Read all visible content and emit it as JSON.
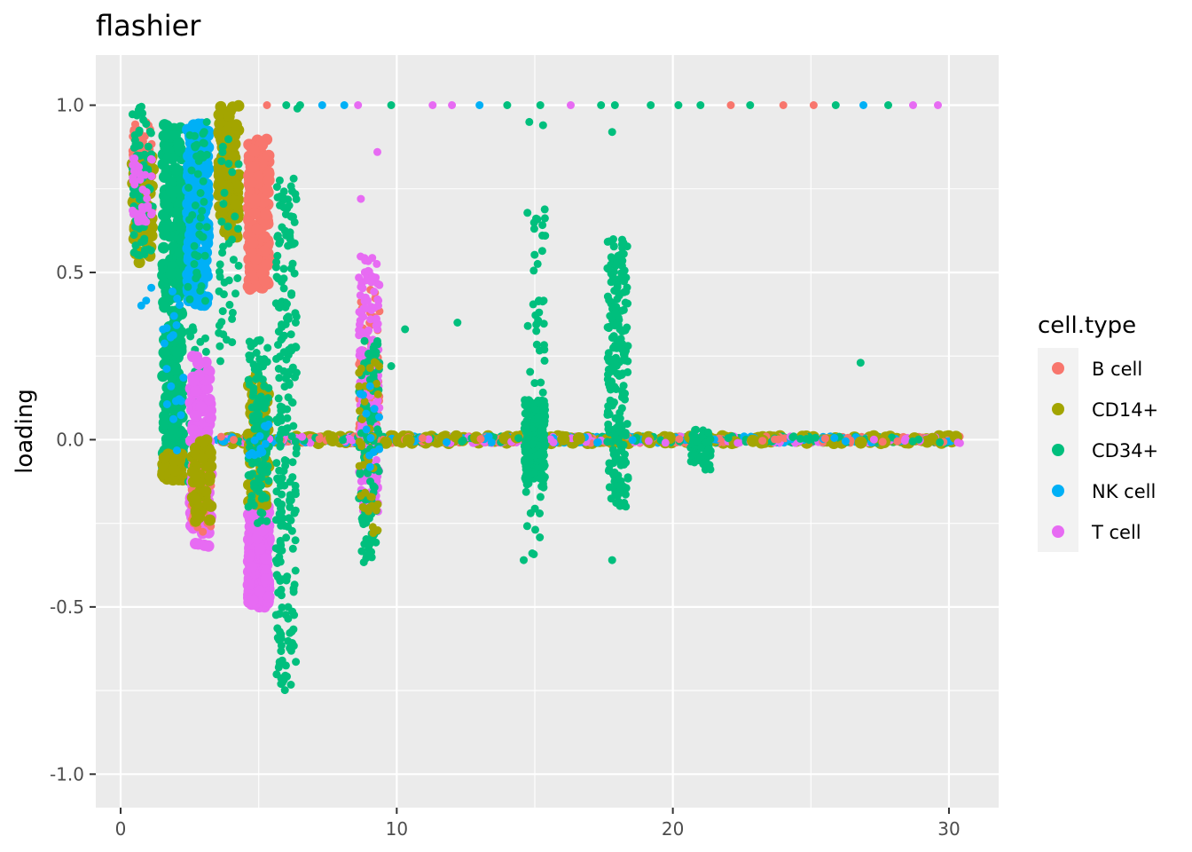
{
  "chart_data": {
    "type": "scatter",
    "title": "flashier",
    "xlabel": "",
    "ylabel": "loading",
    "xlim": [
      -0.9,
      31.8
    ],
    "ylim": [
      -1.1,
      1.15
    ],
    "x_ticks": [
      0,
      10,
      20,
      30
    ],
    "y_ticks": [
      -1.0,
      -0.5,
      0.0,
      0.5,
      1.0
    ],
    "x_tick_labels": [
      "0",
      "10",
      "20",
      "30"
    ],
    "y_tick_labels": [
      "-1.0",
      "-0.5",
      "0.0",
      "0.5",
      "1.0"
    ],
    "grid": true,
    "legend": {
      "title": "cell.type",
      "position": "right",
      "entries": [
        "B cell",
        "CD14+",
        "CD34+",
        "NK cell",
        "T cell"
      ]
    },
    "series": [
      {
        "name": "B cell",
        "color": "#F8766D"
      },
      {
        "name": "CD14+",
        "color": "#A3A500"
      },
      {
        "name": "CD34+",
        "color": "#00BF7D"
      },
      {
        "name": "NK cell",
        "color": "#00B0F6"
      },
      {
        "name": "T cell",
        "color": "#E76BF3"
      }
    ],
    "clusters": [
      {
        "x": 0.8,
        "series": "B cell",
        "ymin": 0.6,
        "ymax": 0.95,
        "n": 80,
        "size": "small"
      },
      {
        "x": 0.8,
        "series": "CD14+",
        "ymin": 0.52,
        "ymax": 0.85,
        "n": 60,
        "size": "large"
      },
      {
        "x": 0.8,
        "series": "CD34+",
        "ymin": 0.55,
        "ymax": 1.0,
        "n": 80,
        "size": "small"
      },
      {
        "x": 0.8,
        "series": "T cell",
        "ymin": 0.65,
        "ymax": 0.85,
        "n": 40,
        "size": "small"
      },
      {
        "x": 0.8,
        "series": "NK cell",
        "ymin": 0.4,
        "ymax": 0.46,
        "n": 3,
        "size": "small"
      },
      {
        "x": 1.9,
        "series": "CD34+",
        "ymin": -0.1,
        "ymax": 0.95,
        "n": 260,
        "size": "large"
      },
      {
        "x": 1.9,
        "series": "CD14+",
        "ymin": -0.12,
        "ymax": -0.04,
        "n": 40,
        "size": "large"
      },
      {
        "x": 1.9,
        "series": "NK cell",
        "ymin": -0.05,
        "ymax": 0.45,
        "n": 20,
        "size": "small"
      },
      {
        "x": 2.8,
        "series": "NK cell",
        "ymin": 0.4,
        "ymax": 0.95,
        "n": 280,
        "size": "large"
      },
      {
        "x": 2.8,
        "series": "CD34+",
        "ymin": -0.3,
        "ymax": 0.95,
        "n": 90,
        "size": "small"
      },
      {
        "x": 2.9,
        "series": "T cell",
        "ymin": -0.32,
        "ymax": 0.25,
        "n": 140,
        "size": "large"
      },
      {
        "x": 2.9,
        "series": "B cell",
        "ymin": -0.28,
        "ymax": -0.05,
        "n": 50,
        "size": "small"
      },
      {
        "x": 2.9,
        "series": "CD14+",
        "ymin": -0.25,
        "ymax": 0.0,
        "n": 50,
        "size": "large"
      },
      {
        "x": 3.9,
        "series": "CD14+",
        "ymin": 0.6,
        "ymax": 1.0,
        "n": 140,
        "size": "large"
      },
      {
        "x": 3.9,
        "series": "CD34+",
        "ymin": 0.2,
        "ymax": 0.9,
        "n": 40,
        "size": "small"
      },
      {
        "x": 5.0,
        "series": "B cell",
        "ymin": 0.45,
        "ymax": 0.9,
        "n": 220,
        "size": "large"
      },
      {
        "x": 5.0,
        "series": "T cell",
        "ymin": -0.5,
        "ymax": -0.2,
        "n": 260,
        "size": "large"
      },
      {
        "x": 5.0,
        "series": "CD14+",
        "ymin": -0.2,
        "ymax": 0.2,
        "n": 60,
        "size": "large"
      },
      {
        "x": 5.0,
        "series": "CD34+",
        "ymin": -0.25,
        "ymax": 0.3,
        "n": 120,
        "size": "small"
      },
      {
        "x": 5.0,
        "series": "NK cell",
        "ymin": -0.05,
        "ymax": 0.05,
        "n": 12,
        "size": "small"
      },
      {
        "x": 6.0,
        "series": "CD34+",
        "ymin": -0.75,
        "ymax": 0.8,
        "n": 240,
        "size": "small"
      },
      {
        "x": 9.0,
        "series": "B cell",
        "ymin": 0.0,
        "ymax": 0.45,
        "n": 80,
        "size": "small"
      },
      {
        "x": 9.0,
        "series": "T cell",
        "ymin": -0.22,
        "ymax": 0.55,
        "n": 200,
        "size": "small"
      },
      {
        "x": 9.0,
        "series": "CD34+",
        "ymin": -0.38,
        "ymax": 0.3,
        "n": 110,
        "size": "small"
      },
      {
        "x": 9.0,
        "series": "CD14+",
        "ymin": -0.28,
        "ymax": 0.25,
        "n": 40,
        "size": "small"
      },
      {
        "x": 9.0,
        "series": "NK cell",
        "ymin": -0.1,
        "ymax": 0.2,
        "n": 12,
        "size": "small"
      },
      {
        "x": 15.0,
        "series": "CD34+",
        "ymin": -0.12,
        "ymax": 0.12,
        "n": 260,
        "size": "small"
      },
      {
        "x": 15.0,
        "series": "CD34+",
        "ymin": -0.35,
        "ymax": 0.7,
        "n": 60,
        "size": "small"
      },
      {
        "x": 18.0,
        "series": "CD34+",
        "ymin": -0.2,
        "ymax": 0.6,
        "n": 220,
        "size": "small"
      },
      {
        "x": 21.0,
        "series": "CD34+",
        "ymin": -0.1,
        "ymax": 0.03,
        "n": 60,
        "size": "small"
      }
    ],
    "baseline_band": {
      "xmin": 3.5,
      "xmax": 30.4,
      "y": 0.0,
      "series_order": [
        "CD14+",
        "B cell",
        "CD34+",
        "T cell",
        "NK cell"
      ],
      "n": 1100
    },
    "outliers": [
      {
        "x": 5.3,
        "y": 1.0,
        "series": "B cell"
      },
      {
        "x": 6.0,
        "y": 1.0,
        "series": "CD34+"
      },
      {
        "x": 6.5,
        "y": 1.0,
        "series": "CD34+"
      },
      {
        "x": 6.4,
        "y": 0.99,
        "series": "CD34+"
      },
      {
        "x": 7.3,
        "y": 1.0,
        "series": "NK cell"
      },
      {
        "x": 8.1,
        "y": 1.0,
        "series": "NK cell"
      },
      {
        "x": 8.6,
        "y": 1.0,
        "series": "T cell"
      },
      {
        "x": 9.8,
        "y": 1.0,
        "series": "CD34+"
      },
      {
        "x": 11.3,
        "y": 1.0,
        "series": "T cell"
      },
      {
        "x": 12.0,
        "y": 1.0,
        "series": "T cell"
      },
      {
        "x": 13.0,
        "y": 1.0,
        "series": "NK cell"
      },
      {
        "x": 14.0,
        "y": 1.0,
        "series": "CD34+"
      },
      {
        "x": 15.2,
        "y": 1.0,
        "series": "CD34+"
      },
      {
        "x": 16.3,
        "y": 1.0,
        "series": "T cell"
      },
      {
        "x": 17.4,
        "y": 1.0,
        "series": "CD34+"
      },
      {
        "x": 17.9,
        "y": 1.0,
        "series": "CD34+"
      },
      {
        "x": 19.2,
        "y": 1.0,
        "series": "CD34+"
      },
      {
        "x": 20.2,
        "y": 1.0,
        "series": "CD34+"
      },
      {
        "x": 21.0,
        "y": 1.0,
        "series": "CD34+"
      },
      {
        "x": 22.1,
        "y": 1.0,
        "series": "B cell"
      },
      {
        "x": 22.8,
        "y": 1.0,
        "series": "CD34+"
      },
      {
        "x": 24.0,
        "y": 1.0,
        "series": "B cell"
      },
      {
        "x": 25.1,
        "y": 1.0,
        "series": "B cell"
      },
      {
        "x": 25.9,
        "y": 1.0,
        "series": "CD34+"
      },
      {
        "x": 26.9,
        "y": 1.0,
        "series": "NK cell"
      },
      {
        "x": 27.8,
        "y": 1.0,
        "series": "CD34+"
      },
      {
        "x": 28.7,
        "y": 1.0,
        "series": "T cell"
      },
      {
        "x": 29.6,
        "y": 1.0,
        "series": "T cell"
      },
      {
        "x": 14.8,
        "y": 0.95,
        "series": "CD34+"
      },
      {
        "x": 15.3,
        "y": 0.94,
        "series": "CD34+"
      },
      {
        "x": 17.8,
        "y": 0.92,
        "series": "CD34+"
      },
      {
        "x": 10.3,
        "y": 0.33,
        "series": "CD34+"
      },
      {
        "x": 12.2,
        "y": 0.35,
        "series": "CD34+"
      },
      {
        "x": 9.8,
        "y": 0.22,
        "series": "CD34+"
      },
      {
        "x": 26.8,
        "y": 0.23,
        "series": "CD34+"
      },
      {
        "x": 9.3,
        "y": 0.86,
        "series": "T cell"
      },
      {
        "x": 8.7,
        "y": 0.72,
        "series": "T cell"
      },
      {
        "x": 14.6,
        "y": -0.36,
        "series": "CD34+"
      },
      {
        "x": 17.8,
        "y": -0.36,
        "series": "CD34+"
      },
      {
        "x": 18.3,
        "y": -0.2,
        "series": "CD34+"
      }
    ]
  }
}
